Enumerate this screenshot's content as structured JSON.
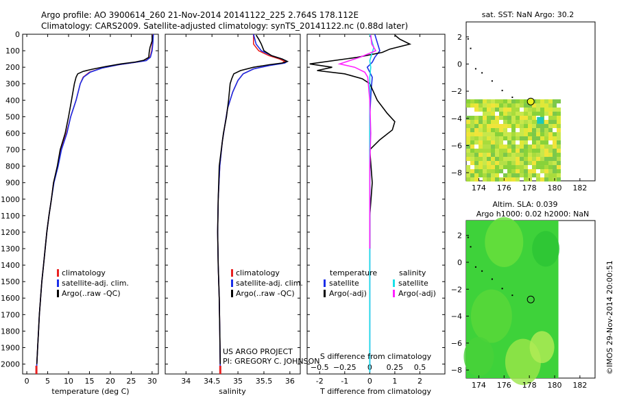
{
  "header": {
    "line1": "Argo profile: AO 3900614_260 21-Nov-2014 20141122_225 2.764S 178.112E",
    "line2": "Climatology: CARS2009. Satellite-adjusted climatology: synTS_20141122.nc (0.88d later)"
  },
  "side_text": "©IMOS 29-Nov-2014 20:00:51",
  "project": {
    "line1": "US ARGO PROJECT",
    "line2": "PI: GREGORY C. JOHNSON"
  },
  "colors": {
    "climatology": "#e82020",
    "satellite": "#1a2ee8",
    "argo": "#000000",
    "sal_satellite": "#19e0e8",
    "sal_argo": "#ff20ff"
  },
  "chart_data": [
    {
      "type": "line",
      "id": "temperature",
      "xlabel": "temperature (deg C)",
      "xlim": [
        -1,
        31.5
      ],
      "ylim": [
        2060,
        0
      ],
      "y_reversed": true,
      "xticks": [
        0,
        5,
        10,
        15,
        20,
        25,
        30
      ],
      "yticks": [
        0,
        100,
        200,
        300,
        400,
        500,
        600,
        700,
        800,
        900,
        1000,
        1100,
        1200,
        1300,
        1400,
        1500,
        1600,
        1700,
        1800,
        1900,
        2000
      ],
      "legend": [
        "climatology",
        "satellite-adj. clim.",
        "Argo(..raw -QC)"
      ],
      "series": [
        {
          "name": "climatology",
          "color": "#e82020",
          "points": [
            [
              30.2,
              0
            ],
            [
              30.1,
              50
            ],
            [
              29.9,
              100
            ],
            [
              29.5,
              140
            ],
            [
              28.5,
              160
            ],
            [
              26,
              170
            ],
            [
              22,
              185
            ],
            [
              18,
              205
            ],
            [
              15,
              230
            ],
            [
              13.5,
              260
            ],
            [
              12.8,
              300
            ],
            [
              11.8,
              400
            ],
            [
              10.5,
              500
            ],
            [
              9.5,
              600
            ],
            [
              8.2,
              700
            ],
            [
              7.4,
              800
            ],
            [
              6.4,
              900
            ],
            [
              5.9,
              1000
            ],
            [
              5.3,
              1100
            ],
            [
              4.8,
              1200
            ],
            [
              4.4,
              1300
            ],
            [
              4.0,
              1400
            ],
            [
              3.6,
              1500
            ],
            [
              3.3,
              1600
            ],
            [
              3.0,
              1700
            ],
            [
              2.8,
              1800
            ],
            [
              2.6,
              1900
            ],
            [
              2.4,
              2000
            ],
            [
              2.3,
              2050
            ]
          ]
        },
        {
          "name": "satellite-adj. clim.",
          "color": "#1a2ee8",
          "points": [
            [
              30.3,
              0
            ],
            [
              30.2,
              50
            ],
            [
              30.0,
              100
            ],
            [
              29.6,
              140
            ],
            [
              28.6,
              160
            ],
            [
              26,
              170
            ],
            [
              22,
              185
            ],
            [
              18,
              205
            ],
            [
              15.2,
              230
            ],
            [
              13.6,
              260
            ],
            [
              12.8,
              300
            ],
            [
              11.8,
              400
            ],
            [
              10.5,
              500
            ],
            [
              9.6,
              600
            ],
            [
              8.3,
              700
            ],
            [
              7.5,
              800
            ],
            [
              6.5,
              900
            ],
            [
              5.9,
              1000
            ],
            [
              5.3,
              1100
            ],
            [
              4.8,
              1200
            ],
            [
              4.4,
              1300
            ],
            [
              4.0,
              1400
            ],
            [
              3.6,
              1500
            ],
            [
              3.3,
              1600
            ],
            [
              3.0,
              1700
            ],
            [
              2.8,
              1800
            ],
            [
              2.6,
              1900
            ],
            [
              2.4,
              2000
            ],
            [
              2.3,
              2050
            ]
          ]
        },
        {
          "name": "Argo(..raw -QC)",
          "color": "#000000",
          "points": [
            [
              30.0,
              5
            ],
            [
              30.0,
              40
            ],
            [
              29.5,
              80
            ],
            [
              29.3,
              110
            ],
            [
              29.2,
              140
            ],
            [
              28,
              158
            ],
            [
              26,
              168
            ],
            [
              22.5,
              180
            ],
            [
              19,
              195
            ],
            [
              16,
              210
            ],
            [
              13.5,
              225
            ],
            [
              12.2,
              240
            ],
            [
              11.8,
              260
            ],
            [
              11.4,
              300
            ],
            [
              10.7,
              400
            ],
            [
              10.0,
              500
            ],
            [
              9.2,
              600
            ],
            [
              8.0,
              700
            ],
            [
              7.3,
              800
            ],
            [
              6.4,
              900
            ],
            [
              5.9,
              1000
            ],
            [
              5.3,
              1100
            ],
            [
              4.8,
              1200
            ],
            [
              4.4,
              1300
            ],
            [
              4.0,
              1400
            ],
            [
              3.6,
              1500
            ],
            [
              3.3,
              1600
            ],
            [
              3.0,
              1700
            ],
            [
              2.8,
              1800
            ],
            [
              2.6,
              1900
            ],
            [
              2.4,
              2000
            ]
          ]
        }
      ]
    },
    {
      "type": "line",
      "id": "salinity",
      "xlabel": "salinity",
      "xlim": [
        33.6,
        36.2
      ],
      "ylim": [
        2060,
        0
      ],
      "y_reversed": true,
      "xticks": [
        34,
        34.5,
        35,
        35.5,
        36
      ],
      "legend": [
        "climatology",
        "satellite-adj. clim.",
        "Argo(..raw -QC)"
      ],
      "series": [
        {
          "name": "climatology",
          "color": "#e82020",
          "points": [
            [
              35.3,
              0
            ],
            [
              35.3,
              60
            ],
            [
              35.4,
              100
            ],
            [
              35.6,
              130
            ],
            [
              35.8,
              150
            ],
            [
              35.9,
              165
            ],
            [
              35.85,
              175
            ],
            [
              35.6,
              190
            ],
            [
              35.3,
              210
            ],
            [
              35.1,
              240
            ],
            [
              35.0,
              280
            ],
            [
              34.9,
              350
            ],
            [
              34.8,
              450
            ],
            [
              34.75,
              550
            ],
            [
              34.7,
              650
            ],
            [
              34.65,
              800
            ],
            [
              34.62,
              1000
            ],
            [
              34.61,
              1200
            ],
            [
              34.62,
              1400
            ],
            [
              34.64,
              1600
            ],
            [
              34.65,
              1800
            ],
            [
              34.66,
              2050
            ]
          ]
        },
        {
          "name": "satellite-adj. clim.",
          "color": "#1a2ee8",
          "points": [
            [
              35.3,
              0
            ],
            [
              35.35,
              60
            ],
            [
              35.45,
              100
            ],
            [
              35.65,
              130
            ],
            [
              35.85,
              150
            ],
            [
              35.95,
              165
            ],
            [
              35.9,
              175
            ],
            [
              35.6,
              190
            ],
            [
              35.3,
              210
            ],
            [
              35.1,
              240
            ],
            [
              35.0,
              280
            ],
            [
              34.9,
              350
            ],
            [
              34.8,
              450
            ],
            [
              34.75,
              550
            ],
            [
              34.7,
              650
            ],
            [
              34.65,
              800
            ],
            [
              34.62,
              1000
            ],
            [
              34.61,
              1200
            ],
            [
              34.62,
              1400
            ],
            [
              34.64,
              1600
            ],
            [
              34.65,
              1800
            ],
            [
              34.66,
              2050
            ]
          ]
        },
        {
          "name": "Argo(..raw -QC)",
          "color": "#000000",
          "points": [
            [
              35.35,
              5
            ],
            [
              35.4,
              30
            ],
            [
              35.45,
              60
            ],
            [
              35.5,
              100
            ],
            [
              35.65,
              130
            ],
            [
              35.85,
              150
            ],
            [
              35.95,
              165
            ],
            [
              35.85,
              175
            ],
            [
              35.6,
              185
            ],
            [
              35.3,
              200
            ],
            [
              35.05,
              220
            ],
            [
              34.92,
              240
            ],
            [
              34.88,
              270
            ],
            [
              34.85,
              300
            ],
            [
              34.82,
              400
            ],
            [
              34.78,
              500
            ],
            [
              34.72,
              600
            ],
            [
              34.68,
              700
            ],
            [
              34.64,
              800
            ],
            [
              34.62,
              1000
            ],
            [
              34.61,
              1200
            ],
            [
              34.62,
              1400
            ],
            [
              34.64,
              1600
            ],
            [
              34.65,
              1800
            ],
            [
              34.66,
              2000
            ]
          ]
        }
      ]
    },
    {
      "type": "line",
      "id": "difference",
      "xlabel": "T difference from climatology",
      "xlabel_top": "S difference from climatology",
      "xlim": [
        -2.5,
        3
      ],
      "xlim_s": [
        -0.625,
        0.75
      ],
      "ylim": [
        2060,
        0
      ],
      "y_reversed": true,
      "xticks": [
        -2,
        -1,
        0,
        1,
        2
      ],
      "xticks_s": [
        -0.5,
        -0.25,
        0,
        0.25,
        0.5
      ],
      "legend_headers": [
        "temperature",
        "salinity"
      ],
      "legend": [
        "satellite",
        "Argo(-adj)",
        "satellite",
        "Argo(-adj)"
      ],
      "series": [
        {
          "name": "temperature satellite",
          "color": "#1a2ee8",
          "points": [
            [
              0.2,
              0
            ],
            [
              0.3,
              50
            ],
            [
              0.4,
              100
            ],
            [
              0.2,
              140
            ],
            [
              0.1,
              170
            ],
            [
              -0.1,
              200
            ],
            [
              0.0,
              230
            ],
            [
              0.1,
              260
            ],
            [
              0.05,
              350
            ],
            [
              0.0,
              500
            ],
            [
              0.0,
              700
            ],
            [
              0.0,
              1000
            ],
            [
              0.0,
              1500
            ],
            [
              0.0,
              2050
            ]
          ]
        },
        {
          "name": "temperature Argo(-adj)",
          "color": "#000000",
          "points": [
            [
              1.0,
              5
            ],
            [
              1.2,
              30
            ],
            [
              1.6,
              60
            ],
            [
              0.8,
              90
            ],
            [
              0.5,
              110
            ],
            [
              -0.5,
              140
            ],
            [
              -2.4,
              180
            ],
            [
              -1.5,
              200
            ],
            [
              -2.1,
              220
            ],
            [
              -1.0,
              240
            ],
            [
              -0.3,
              270
            ],
            [
              0.0,
              300
            ],
            [
              0.3,
              400
            ],
            [
              0.7,
              480
            ],
            [
              1.0,
              530
            ],
            [
              0.9,
              580
            ],
            [
              0.4,
              640
            ],
            [
              0.0,
              700
            ],
            [
              0.1,
              900
            ],
            [
              0.0,
              1100
            ],
            [
              0.0,
              1300
            ]
          ]
        },
        {
          "name": "salinity satellite",
          "color": "#19e0e8",
          "points": [
            [
              0.0,
              0
            ],
            [
              0.02,
              40
            ],
            [
              0.04,
              80
            ],
            [
              0.02,
              120
            ],
            [
              0.0,
              160
            ],
            [
              0.01,
              200
            ],
            [
              0.0,
              260
            ],
            [
              0.0,
              400
            ],
            [
              0.0,
              700
            ],
            [
              0.0,
              1000
            ],
            [
              0.0,
              1500
            ],
            [
              0.0,
              2050
            ]
          ]
        },
        {
          "name": "salinity Argo(-adj)",
          "color": "#ff20ff",
          "points": [
            [
              0.01,
              5
            ],
            [
              0.02,
              60
            ],
            [
              0.06,
              100
            ],
            [
              -0.1,
              140
            ],
            [
              -0.3,
              180
            ],
            [
              -0.15,
              200
            ],
            [
              -0.05,
              230
            ],
            [
              -0.02,
              260
            ],
            [
              0.0,
              400
            ],
            [
              0.01,
              600
            ],
            [
              0.0,
              800
            ],
            [
              0.0,
              1000
            ],
            [
              0.0,
              1300
            ]
          ]
        }
      ]
    },
    {
      "type": "heatmap",
      "id": "sst_map",
      "title": "sat. SST: NaN Argo: 30.2",
      "xlim": [
        173,
        183.2
      ],
      "ylim": [
        -8.6,
        3.1
      ],
      "xticks": [
        174,
        176,
        178,
        180,
        182
      ],
      "yticks": [
        -8,
        -6,
        -4,
        -2,
        0,
        2
      ],
      "argo_position": [
        178.11,
        -2.76
      ]
    },
    {
      "type": "heatmap",
      "id": "sla_map",
      "title": "Altim. SLA: 0.039",
      "subtitle": "Argo h1000: 0.02 h2000: NaN",
      "xlim": [
        173,
        183.2
      ],
      "ylim": [
        -8.6,
        3.1
      ],
      "xticks": [
        174,
        176,
        178,
        180,
        182
      ],
      "yticks": [
        -8,
        -6,
        -4,
        -2,
        0,
        2
      ],
      "argo_position": [
        178.11,
        -2.76
      ]
    }
  ]
}
